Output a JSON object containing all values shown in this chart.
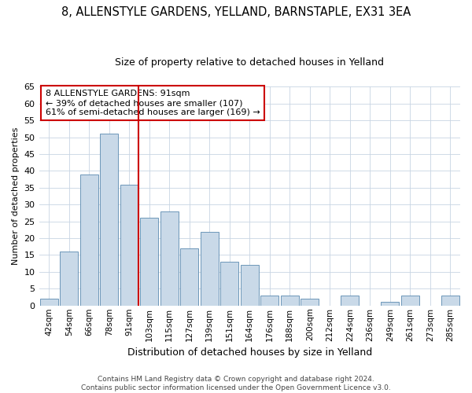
{
  "title1": "8, ALLENSTYLE GARDENS, YELLAND, BARNSTAPLE, EX31 3EA",
  "title2": "Size of property relative to detached houses in Yelland",
  "xlabel": "Distribution of detached houses by size in Yelland",
  "ylabel": "Number of detached properties",
  "footer1": "Contains HM Land Registry data © Crown copyright and database right 2024.",
  "footer2": "Contains public sector information licensed under the Open Government Licence v3.0.",
  "annotation_line1": "8 ALLENSTYLE GARDENS: 91sqm",
  "annotation_line2": "← 39% of detached houses are smaller (107)",
  "annotation_line3": "61% of semi-detached houses are larger (169) →",
  "bar_labels": [
    "42sqm",
    "54sqm",
    "66sqm",
    "78sqm",
    "91sqm",
    "103sqm",
    "115sqm",
    "127sqm",
    "139sqm",
    "151sqm",
    "164sqm",
    "176sqm",
    "188sqm",
    "200sqm",
    "212sqm",
    "224sqm",
    "236sqm",
    "249sqm",
    "261sqm",
    "273sqm",
    "285sqm"
  ],
  "bar_values": [
    2,
    16,
    39,
    51,
    36,
    26,
    28,
    17,
    22,
    13,
    12,
    3,
    3,
    2,
    0,
    3,
    0,
    1,
    3,
    0,
    3
  ],
  "bar_color": "#c9d9e8",
  "bar_edge_color": "#5a8ab0",
  "vline_color": "#cc0000",
  "vline_x_index": 4,
  "annotation_box_color": "#cc0000",
  "background_color": "#ffffff",
  "grid_color": "#c8d4e3",
  "ylim": [
    0,
    65
  ],
  "yticks": [
    0,
    5,
    10,
    15,
    20,
    25,
    30,
    35,
    40,
    45,
    50,
    55,
    60,
    65
  ],
  "title1_fontsize": 10.5,
  "title2_fontsize": 9,
  "ylabel_fontsize": 8,
  "xlabel_fontsize": 9,
  "footer_fontsize": 6.5,
  "annotation_fontsize": 8
}
